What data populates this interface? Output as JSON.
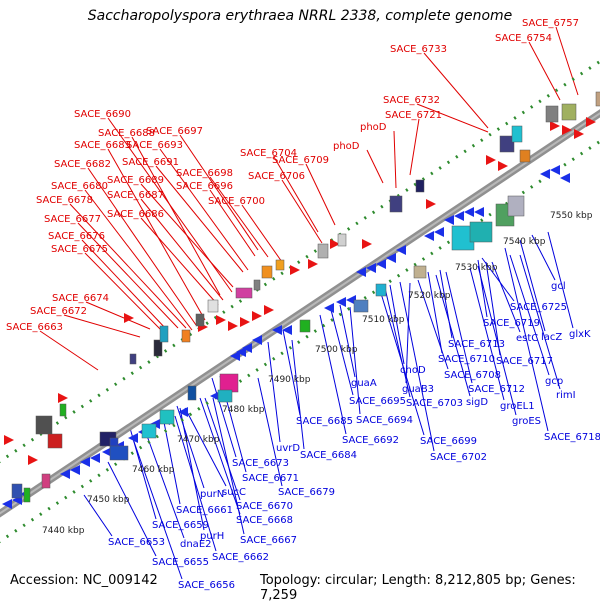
{
  "title": "Saccharopolyspora erythraea NRRL 2338, complete genome",
  "footer": {
    "accession": "Accession: NC_009142",
    "info": "Topology: circular; Length: 8,212,805 bp; Genes: 7,259"
  },
  "colors": {
    "forward_label": "#e00000",
    "reverse_label": "#0000dd",
    "backbone": "#808080",
    "dots": "#2e8b2e"
  },
  "kbp_ticks": [
    "7440 kbp",
    "7450 kbp",
    "7460 kbp",
    "7470 kbp",
    "7480 kbp",
    "7490 kbp",
    "7500 kbp",
    "7510 kbp",
    "7520 kbp",
    "7530 kbp",
    "7540 kbp",
    "7550 kbp"
  ],
  "forward_labels": [
    "SACE_6757",
    "SACE_6754",
    "SACE_6733",
    "SACE_6732",
    "SACE_6721",
    "phoD",
    "phoD",
    "SACE_6709",
    "SACE_6706",
    "SACE_6704",
    "SACE_6700",
    "SACE_6698",
    "SACE_6697",
    "SACE_6696",
    "SACE_6693",
    "SACE_6691",
    "SACE_6690",
    "SACE_6689",
    "SACE_6688",
    "SACE_6687",
    "SACE_6686",
    "SACE_6683",
    "SACE_6682",
    "SACE_6680",
    "SACE_6678",
    "SACE_6677",
    "SACE_6676",
    "SACE_6675",
    "SACE_6674",
    "SACE_6672",
    "SACE_6663"
  ],
  "reverse_labels": [
    "gcl",
    "glxK",
    "SACE_6725",
    "SACE_6719",
    "lacZ",
    "estC",
    "SACE_6717",
    "gcp",
    "rimI",
    "SACE_6713",
    "SACE_6710",
    "choD",
    "SACE_6708",
    "guaB3",
    "SACE_6712",
    "SACE_6703",
    "guaA",
    "SACE_6695",
    "sigD",
    "groEL1",
    "groES",
    "SACE_6718",
    "SACE_6694",
    "SACE_6699",
    "SACE_6685",
    "SACE_6692",
    "SACE_6702",
    "uvrD",
    "SACE_6684",
    "SACE_6673",
    "SACE_6671",
    "SACE_6679",
    "sucC",
    "purN",
    "SACE_6670",
    "SACE_6661",
    "SACE_6668",
    "SACE_6659",
    "purH",
    "SACE_6667",
    "dnaE2",
    "SACE_6653",
    "SACE_6662",
    "SACE_6655",
    "SACE_6656"
  ]
}
